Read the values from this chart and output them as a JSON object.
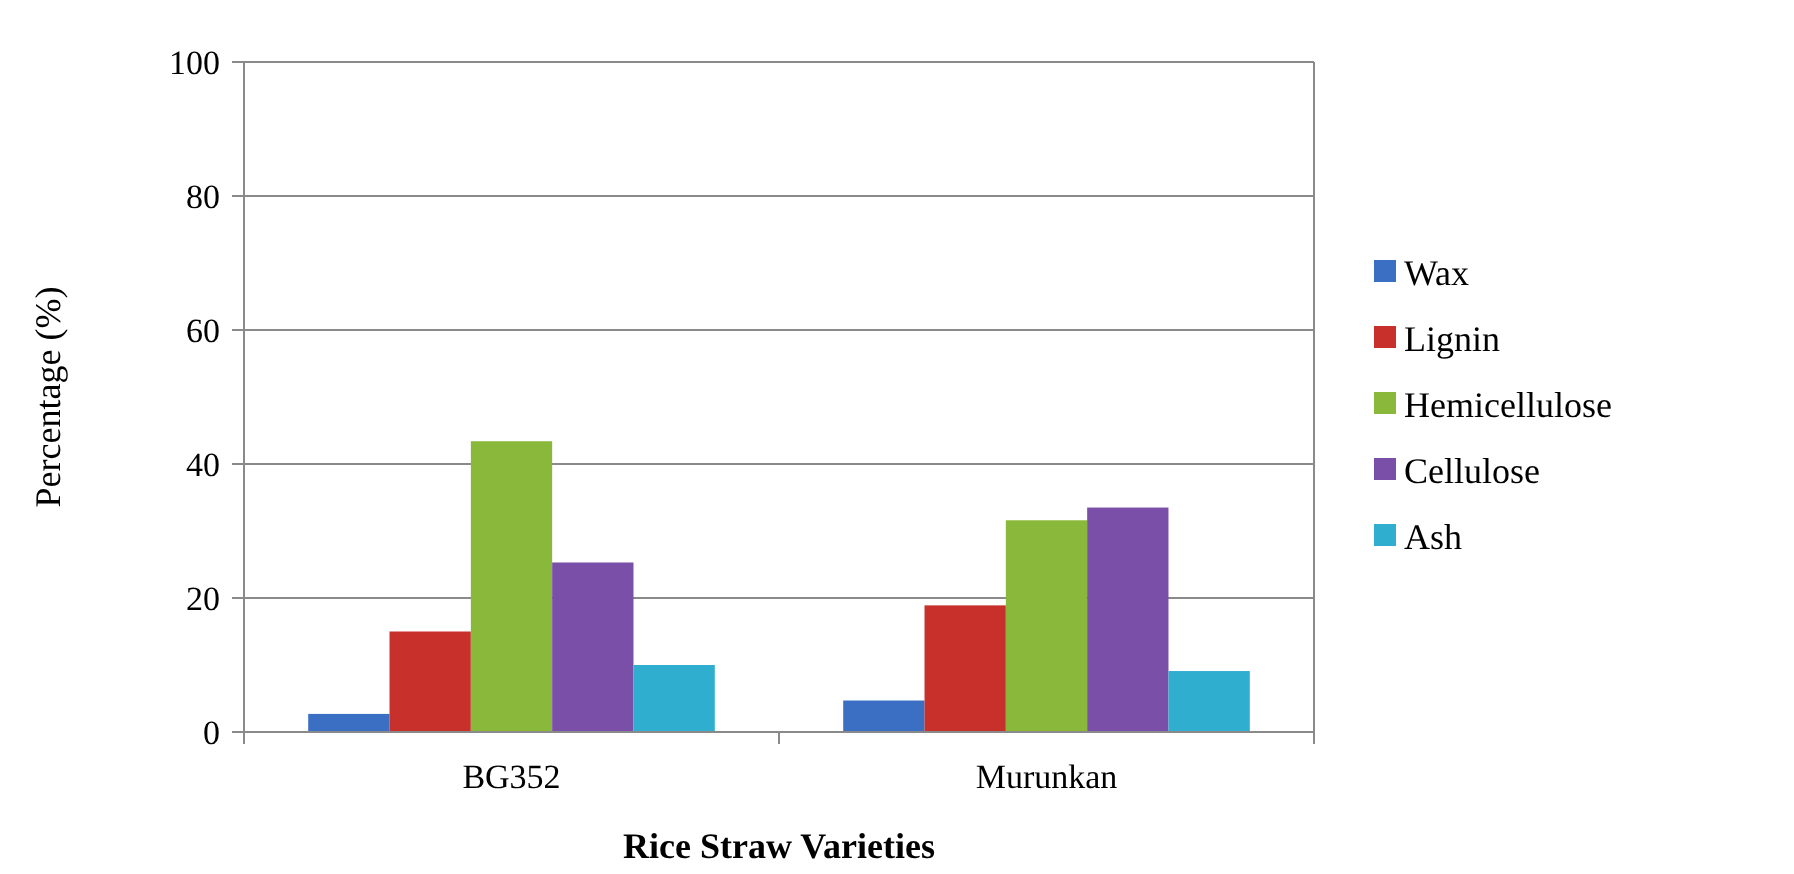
{
  "chart_data": {
    "type": "bar",
    "xlabel": "Rice Straw Varieties",
    "ylabel": "Percentage (%)",
    "categories": [
      "BG352",
      "Murunkan"
    ],
    "series": [
      {
        "name": "Wax",
        "color": "#3a6fc4",
        "values": [
          2.7,
          4.7
        ]
      },
      {
        "name": "Lignin",
        "color": "#c8302c",
        "values": [
          15,
          18.9
        ]
      },
      {
        "name": "Hemicellulose",
        "color": "#8ab83a",
        "values": [
          43.4,
          31.6
        ]
      },
      {
        "name": "Cellulose",
        "color": "#7a4fa8",
        "values": [
          25.3,
          33.5
        ]
      },
      {
        "name": "Ash",
        "color": "#2faed0",
        "values": [
          10,
          9.1
        ]
      }
    ],
    "ylim": [
      0,
      100
    ],
    "yticks": [
      0,
      20,
      40,
      60,
      80,
      100
    ],
    "grid": "y",
    "legend": "right"
  }
}
